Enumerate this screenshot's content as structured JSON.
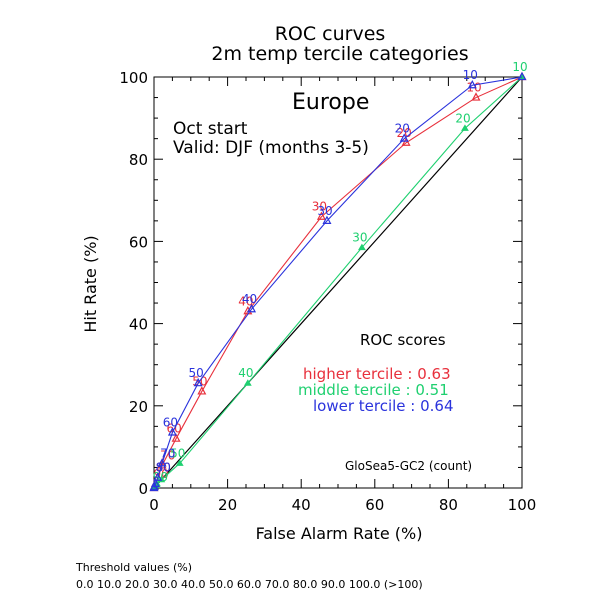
{
  "chart_data": {
    "type": "line",
    "title": "ROC curves",
    "subtitle": "2m temp tercile categories",
    "region": "Europe",
    "start_text": "Oct start",
    "valid_text": "Valid: DJF (months 3-5)",
    "xlabel": "False Alarm Rate (%)",
    "ylabel": "Hit Rate (%)",
    "xlim": [
      0,
      100
    ],
    "ylim": [
      0,
      100
    ],
    "xticks": [
      "0",
      "20",
      "40",
      "60",
      "80",
      "100"
    ],
    "yticks": [
      "0",
      "20",
      "40",
      "60",
      "80",
      "100"
    ],
    "legend_title": "ROC scores",
    "model_text": "GloSea5-GC2 (count)",
    "threshold_title": "Threshold values (%)",
    "threshold_values": "0.0 10.0 20.0 30.0 40.0 50.0 60.0 70.0 80.0 90.0 100.0 (>100)",
    "series": [
      {
        "category": "higher tercile",
        "legend": "higher tercile : 0.63",
        "score": 0.63,
        "color": "#e8303c",
        "x": [
          100,
          87.5,
          68.5,
          45.5,
          25.5,
          13,
          6,
          2.2,
          1,
          0.4,
          0.1,
          0
        ],
        "y": [
          100,
          95,
          84,
          66,
          43,
          23.5,
          12,
          5.5,
          2.5,
          1,
          0.3,
          0
        ],
        "labels": [
          "",
          "10",
          "20",
          "30",
          "40",
          "50",
          "60",
          "70",
          "80",
          "90",
          "",
          ""
        ]
      },
      {
        "category": "middle tercile",
        "legend": "middle tercile : 0.51",
        "score": 0.51,
        "color": "#1fd070",
        "x": [
          100,
          84.5,
          56.5,
          25.5,
          7,
          2,
          0.8,
          0.4,
          0.2,
          0.1,
          0.05,
          0
        ],
        "y": [
          100,
          87.5,
          58.5,
          25.5,
          6,
          2,
          1,
          0.6,
          0.3,
          0.2,
          0.1,
          0
        ],
        "labels": [
          "10",
          "20",
          "30",
          "40",
          "50",
          "",
          "",
          "",
          "90",
          "",
          "",
          ""
        ]
      },
      {
        "category": "lower tercile",
        "legend": "lower tercile : 0.64",
        "score": 0.64,
        "color": "#2a33dc",
        "x": [
          100,
          86.5,
          68,
          47,
          26.5,
          12,
          5,
          2.2,
          1,
          0.4,
          0.1,
          0
        ],
        "y": [
          100,
          98,
          85,
          65,
          43.5,
          25.5,
          13.5,
          6,
          2.5,
          1,
          0.3,
          0
        ],
        "labels": [
          "",
          "10",
          "20",
          "30",
          "40",
          "50",
          "60",
          "70",
          "80",
          "",
          "",
          ""
        ]
      }
    ],
    "diagonal_color": "#000000"
  }
}
